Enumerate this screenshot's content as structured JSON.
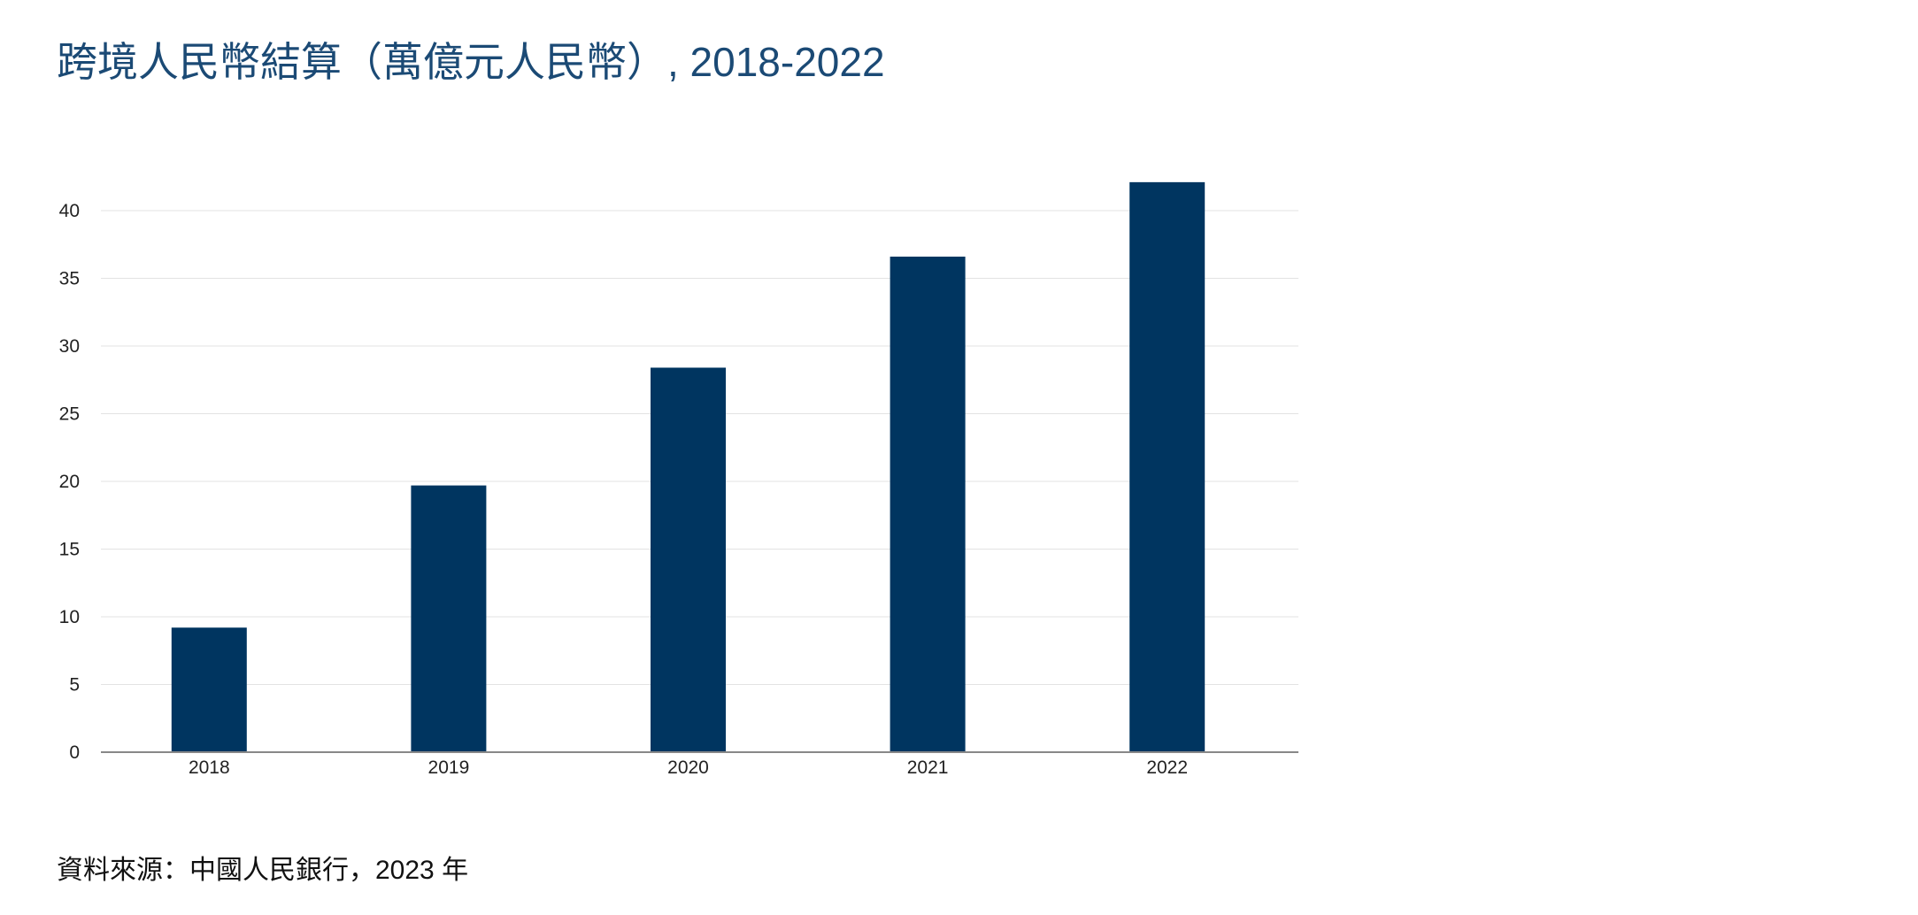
{
  "chart_data": {
    "type": "bar",
    "title": "跨境人民幣結算（萬億元人民幣）, 2018-2022",
    "categories": [
      "2018",
      "2019",
      "2020",
      "2021",
      "2022"
    ],
    "values": [
      9.2,
      19.7,
      28.4,
      36.6,
      42.1
    ],
    "ylim": [
      0,
      45
    ],
    "yticks": [
      0,
      5,
      10,
      15,
      20,
      25,
      30,
      35,
      40
    ],
    "grid": true,
    "bar_color": "#003560"
  },
  "title_text": "跨境人民幣結算（萬億元人民幣）, 2018-2022",
  "source_text": "資料來源：中國人民銀行，2023 年"
}
